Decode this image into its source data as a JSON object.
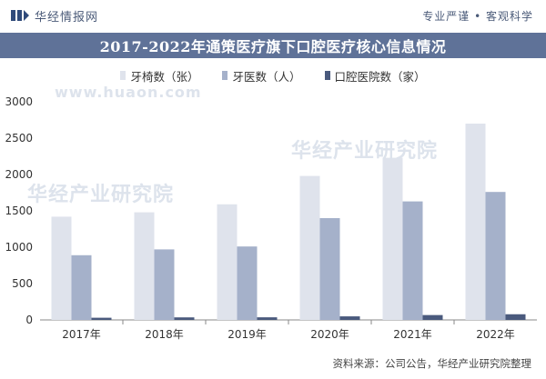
{
  "header": {
    "brand_name": "华经情报网",
    "tagline": "专业严谨 • 客观科学"
  },
  "watermark": {
    "text": "华经产业研究院",
    "url": "www.huaon.com"
  },
  "colors": {
    "title_bg": "#5f7298",
    "series_1": "#dfe3ec",
    "series_2": "#a5b1ca",
    "series_3": "#4a5a7d"
  },
  "chart_data": {
    "type": "bar",
    "title": "2017-2022年通策医疗旗下口腔医疗核心信息情况",
    "categories": [
      "2017年",
      "2018年",
      "2019年",
      "2020年",
      "2021年",
      "2022年"
    ],
    "series": [
      {
        "name": "牙椅数（张）",
        "values": [
          1420,
          1480,
          1590,
          1980,
          2230,
          2700
        ]
      },
      {
        "name": "牙医数（人）",
        "values": [
          890,
          970,
          1010,
          1400,
          1630,
          1760
        ]
      },
      {
        "name": "口腔医院数（家）",
        "values": [
          30,
          35,
          36,
          49,
          67,
          78
        ]
      }
    ],
    "ylim": [
      0,
      3000
    ],
    "yticks": [
      0,
      500,
      1000,
      1500,
      2000,
      2500,
      3000
    ],
    "grid": false,
    "legend_position": "top-center"
  },
  "source": "资料来源：公司公告，华经产业研究院整理"
}
